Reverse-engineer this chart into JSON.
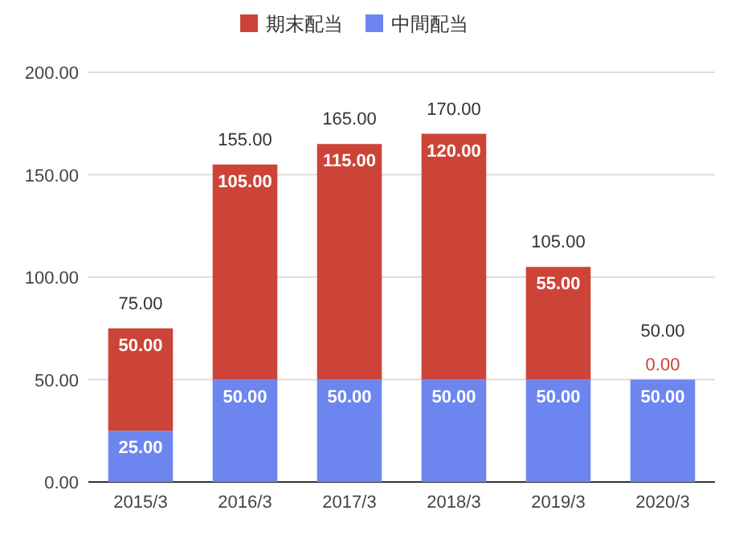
{
  "chart_data": {
    "type": "bar",
    "stacked": true,
    "categories": [
      "2015/3",
      "2016/3",
      "2017/3",
      "2018/3",
      "2019/3",
      "2020/3"
    ],
    "series": [
      {
        "name": "中間配当",
        "color": "#6d86ef",
        "values": [
          25,
          50,
          50,
          50,
          50,
          50
        ],
        "value_labels": [
          "25.00",
          "50.00",
          "50.00",
          "50.00",
          "50.00",
          "50.00"
        ]
      },
      {
        "name": "期末配当",
        "color": "#cc4437",
        "values": [
          50,
          105,
          115,
          120,
          55,
          0
        ],
        "value_labels": [
          "50.00",
          "105.00",
          "115.00",
          "120.00",
          "55.00",
          "0.00"
        ]
      }
    ],
    "totals": [
      "75.00",
      "155.00",
      "165.00",
      "170.00",
      "105.00",
      "50.00"
    ],
    "ylim": [
      0,
      200
    ],
    "yticks": [
      {
        "value": 0,
        "label": "0.00"
      },
      {
        "value": 50,
        "label": "50.00"
      },
      {
        "value": 100,
        "label": "100.00"
      },
      {
        "value": 150,
        "label": "150.00"
      },
      {
        "value": 200,
        "label": "200.00"
      }
    ],
    "grid": "y",
    "legend": "top"
  }
}
